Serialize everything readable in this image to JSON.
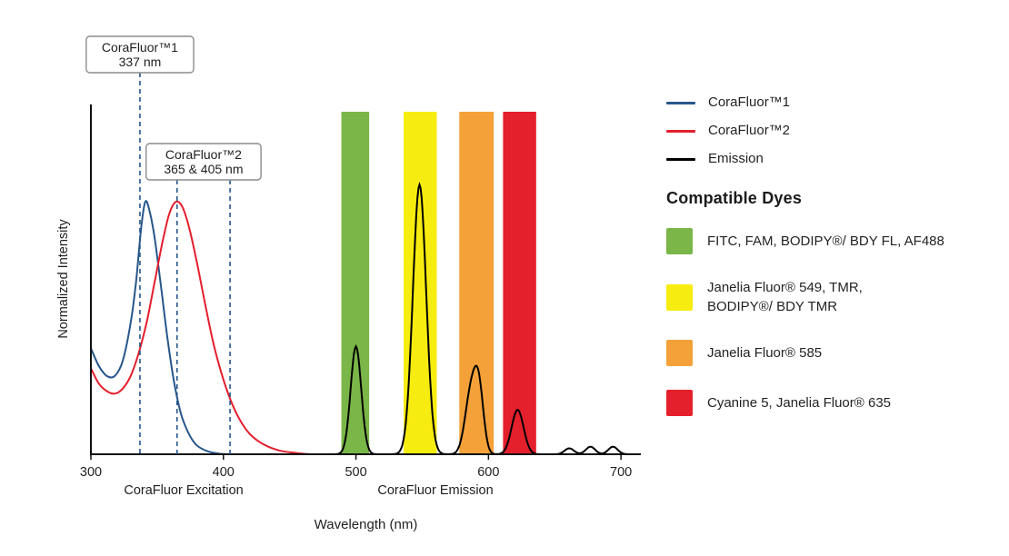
{
  "chart_data": {
    "type": "line",
    "title": "",
    "xlabel": "Wavelength (nm)",
    "ylabel": "Normalized Intensity",
    "xlim": [
      300,
      715
    ],
    "x_ticks": [
      300,
      400,
      500,
      600,
      700
    ],
    "grid": false,
    "marker_color": "#27568b",
    "region_labels": [
      {
        "text": "CoraFluor Excitation",
        "nm": 370
      },
      {
        "text": "CoraFluor Emission",
        "nm": 560
      }
    ],
    "annotations": [
      {
        "lines": [
          "CoraFluor™1",
          "337 nm"
        ],
        "marks_nm": [
          337
        ]
      },
      {
        "lines": [
          "CoraFluor™2",
          "365 & 405 nm"
        ],
        "marks_nm": [
          365,
          405
        ]
      }
    ],
    "bands": [
      {
        "name": "green",
        "from_nm": 489,
        "to_nm": 510,
        "color": "#7ab648"
      },
      {
        "name": "yellow",
        "from_nm": 536,
        "to_nm": 561,
        "color": "#f7ec0f"
      },
      {
        "name": "orange",
        "from_nm": 578,
        "to_nm": 604,
        "color": "#f4a13a"
      },
      {
        "name": "red",
        "from_nm": 611,
        "to_nm": 636,
        "color": "#e4202c"
      }
    ],
    "series": [
      {
        "name": "CoraFluor™1",
        "kind": "excitation",
        "color": "#27568b",
        "peak_height_frac": 0.737,
        "points": [
          [
            300,
            0.42
          ],
          [
            306,
            0.35
          ],
          [
            312,
            0.31
          ],
          [
            318,
            0.31
          ],
          [
            324,
            0.37
          ],
          [
            330,
            0.52
          ],
          [
            334,
            0.68
          ],
          [
            338,
            0.9
          ],
          [
            341,
            1.0
          ],
          [
            344,
            0.97
          ],
          [
            348,
            0.86
          ],
          [
            353,
            0.66
          ],
          [
            358,
            0.45
          ],
          [
            363,
            0.28
          ],
          [
            368,
            0.16
          ],
          [
            374,
            0.08
          ],
          [
            380,
            0.035
          ],
          [
            388,
            0.012
          ],
          [
            396,
            0.003
          ],
          [
            404,
            0.0
          ],
          [
            410,
            0.0
          ]
        ]
      },
      {
        "name": "CoraFluor™2",
        "kind": "excitation",
        "color": "#e41e2d",
        "peak_height_frac": 0.737,
        "points": [
          [
            300,
            0.34
          ],
          [
            306,
            0.28
          ],
          [
            312,
            0.25
          ],
          [
            318,
            0.24
          ],
          [
            324,
            0.26
          ],
          [
            330,
            0.31
          ],
          [
            336,
            0.4
          ],
          [
            342,
            0.52
          ],
          [
            348,
            0.68
          ],
          [
            354,
            0.84
          ],
          [
            359,
            0.95
          ],
          [
            364,
            1.0
          ],
          [
            369,
            0.98
          ],
          [
            374,
            0.9
          ],
          [
            380,
            0.76
          ],
          [
            386,
            0.6
          ],
          [
            392,
            0.45
          ],
          [
            398,
            0.33
          ],
          [
            405,
            0.22
          ],
          [
            412,
            0.14
          ],
          [
            420,
            0.08
          ],
          [
            430,
            0.04
          ],
          [
            442,
            0.015
          ],
          [
            455,
            0.005
          ],
          [
            465,
            0.0
          ]
        ]
      },
      {
        "name": "Emission",
        "kind": "emission",
        "color": "#000000",
        "peak_height_frac": 0.787,
        "range_nm": [
          452,
          712
        ],
        "peaks": [
          [
            500,
            0.4,
            4
          ],
          [
            548,
            1.0,
            5
          ],
          [
            587,
            0.235,
            4.5
          ],
          [
            593,
            0.2,
            3.5
          ],
          [
            622,
            0.165,
            4.5
          ],
          [
            661,
            0.022,
            3.5
          ],
          [
            677,
            0.028,
            3.5
          ],
          [
            694,
            0.028,
            3.5
          ]
        ]
      }
    ]
  },
  "legend": {
    "items": [
      {
        "label": "CoraFluor™1",
        "color": "#27568b"
      },
      {
        "label": "CoraFluor™2",
        "color": "#e41e2d"
      },
      {
        "label": "Emission",
        "color": "#000000"
      }
    ],
    "dyes_heading": "Compatible Dyes",
    "dyes": [
      {
        "color": "#7ab648",
        "label": "FITC, FAM, BODIPY®/ BDY FL, AF488"
      },
      {
        "color": "#f7ec0f",
        "label": "Janelia Fluor® 549, TMR,\nBODIPY®/ BDY TMR"
      },
      {
        "color": "#f4a13a",
        "label": "Janelia Fluor® 585"
      },
      {
        "color": "#e4202c",
        "label": "Cyanine 5, Janelia Fluor® 635"
      }
    ]
  }
}
